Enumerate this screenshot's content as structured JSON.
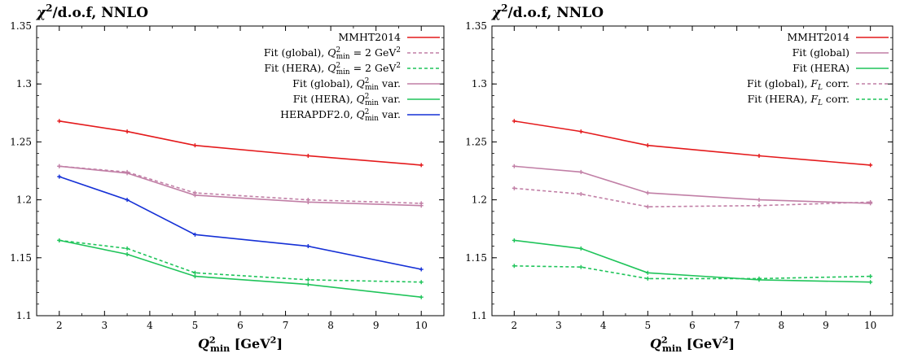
{
  "chart_data": [
    {
      "type": "line",
      "title": "χ²/d.o.f, NNLO",
      "xlabel": "Q²min [GeV²]",
      "ylabel": "",
      "xlim": [
        1.5,
        10.5
      ],
      "ylim": [
        1.1,
        1.35
      ],
      "xticks": [
        2,
        3,
        4,
        5,
        6,
        7,
        8,
        9,
        10
      ],
      "yticks": [
        1.1,
        1.15,
        1.2,
        1.25,
        1.3,
        1.35
      ],
      "legend_position": "top-right",
      "series": [
        {
          "name": "MMHT2014",
          "color": "#e41a1c",
          "dashed": false,
          "x": [
            2,
            3.5,
            5,
            7.5,
            10
          ],
          "values": [
            1.268,
            1.259,
            1.247,
            1.238,
            1.23
          ]
        },
        {
          "name": "Fit (global), Q²min = 2 GeV²",
          "color": "#c17fa6",
          "dashed": true,
          "x": [
            2,
            3.5,
            5,
            7.5,
            10
          ],
          "values": [
            1.229,
            1.224,
            1.206,
            1.2,
            1.197
          ]
        },
        {
          "name": "Fit (HERA), Q²min = 2 GeV²",
          "color": "#1fc45a",
          "dashed": true,
          "x": [
            2,
            3.5,
            5,
            7.5,
            10
          ],
          "values": [
            1.165,
            1.158,
            1.137,
            1.131,
            1.129
          ]
        },
        {
          "name": "Fit (global), Q²min var.",
          "color": "#c17fa6",
          "dashed": false,
          "x": [
            2,
            3.5,
            5,
            7.5,
            10
          ],
          "values": [
            1.229,
            1.223,
            1.204,
            1.198,
            1.195
          ]
        },
        {
          "name": "Fit (HERA), Q²min var.",
          "color": "#1fc45a",
          "dashed": false,
          "x": [
            2,
            3.5,
            5,
            7.5,
            10
          ],
          "values": [
            1.165,
            1.153,
            1.134,
            1.127,
            1.116
          ]
        },
        {
          "name": "HERAPDF2.0, Q²min var.",
          "color": "#1530d6",
          "dashed": false,
          "x": [
            2,
            3.5,
            5,
            7.5,
            10
          ],
          "values": [
            1.22,
            1.2,
            1.17,
            1.16,
            1.14
          ]
        }
      ]
    },
    {
      "type": "line",
      "title": "χ²/d.o.f, NNLO",
      "xlabel": "Q²min [GeV²]",
      "ylabel": "",
      "xlim": [
        1.5,
        10.5
      ],
      "ylim": [
        1.1,
        1.35
      ],
      "xticks": [
        2,
        3,
        4,
        5,
        6,
        7,
        8,
        9,
        10
      ],
      "yticks": [
        1.1,
        1.15,
        1.2,
        1.25,
        1.3,
        1.35
      ],
      "legend_position": "top-right",
      "series": [
        {
          "name": "MMHT2014",
          "color": "#e41a1c",
          "dashed": false,
          "x": [
            2,
            3.5,
            5,
            7.5,
            10
          ],
          "values": [
            1.268,
            1.259,
            1.247,
            1.238,
            1.23
          ]
        },
        {
          "name": "Fit (global)",
          "color": "#c17fa6",
          "dashed": false,
          "x": [
            2,
            3.5,
            5,
            7.5,
            10
          ],
          "values": [
            1.229,
            1.224,
            1.206,
            1.2,
            1.197
          ]
        },
        {
          "name": "Fit (HERA)",
          "color": "#1fc45a",
          "dashed": false,
          "x": [
            2,
            3.5,
            5,
            7.5,
            10
          ],
          "values": [
            1.165,
            1.158,
            1.137,
            1.131,
            1.129
          ]
        },
        {
          "name": "Fit (global), FL corr.",
          "color": "#c17fa6",
          "dashed": true,
          "x": [
            2,
            3.5,
            5,
            7.5,
            10
          ],
          "values": [
            1.21,
            1.205,
            1.194,
            1.195,
            1.198
          ]
        },
        {
          "name": "Fit (HERA), FL corr.",
          "color": "#1fc45a",
          "dashed": true,
          "x": [
            2,
            3.5,
            5,
            7.5,
            10
          ],
          "values": [
            1.143,
            1.142,
            1.132,
            1.132,
            1.134
          ]
        }
      ]
    }
  ]
}
